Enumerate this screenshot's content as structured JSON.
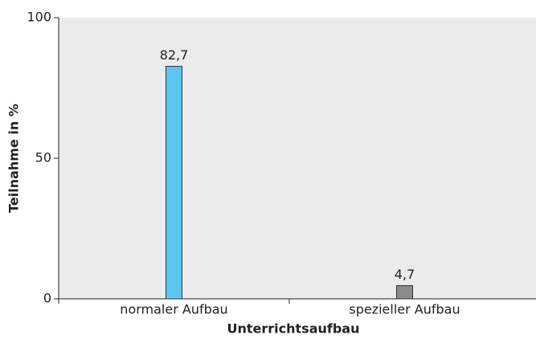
{
  "chart_data": {
    "type": "bar",
    "categories": [
      "normaler Aufbau",
      "spezieller Aufbau"
    ],
    "values": [
      82.7,
      4.7
    ],
    "value_labels": [
      "82,7",
      "4,7"
    ],
    "colors": [
      "#5cc6f0",
      "#8a8a8a"
    ],
    "ylim": [
      0,
      100
    ],
    "yticks": [
      0,
      50,
      100
    ],
    "xlabel": "Unterrichtsaufbau",
    "ylabel": "Teilnahme in %",
    "grid": false
  }
}
